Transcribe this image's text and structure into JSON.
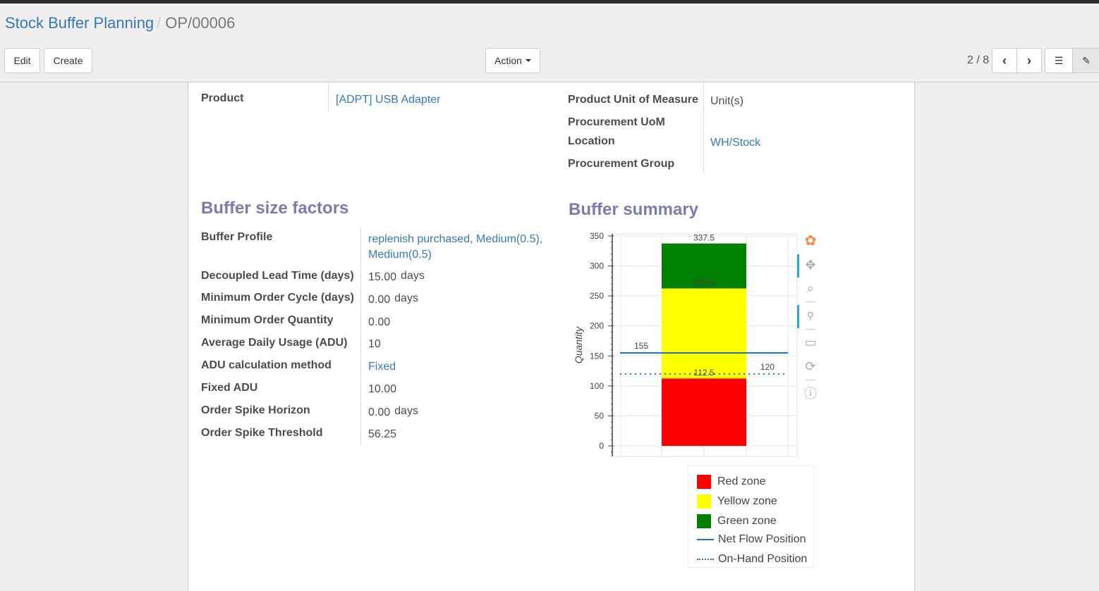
{
  "breadcrumb": {
    "parent": "Stock Buffer Planning",
    "current": "OP/00006"
  },
  "toolbar": {
    "edit": "Edit",
    "create": "Create",
    "action": "Action",
    "pager": "2 / 8"
  },
  "form": {
    "product_label": "Product",
    "product_value": "[ADPT] USB Adapter",
    "uom_label": "Product Unit of Measure",
    "uom_value": "Unit(s)",
    "proc_uom_label": "Procurement UoM",
    "location_label": "Location",
    "location_value": "WH/Stock",
    "proc_group_label": "Procurement Group"
  },
  "factors": {
    "title": "Buffer size factors",
    "rows": [
      {
        "label": "Buffer Profile",
        "value": "replenish purchased, Medium(0.5),",
        "value2": "Medium(0.5)",
        "link": true
      },
      {
        "label": "Decoupled Lead Time (days)",
        "value": "15.00",
        "unit": "days"
      },
      {
        "label": "Minimum Order Cycle (days)",
        "value": "0.00",
        "unit": "days"
      },
      {
        "label": "Minimum Order Quantity",
        "value": "0.00"
      },
      {
        "label": "Average Daily Usage (ADU)",
        "value": "10"
      },
      {
        "label": "ADU calculation method",
        "value": "Fixed",
        "link": true
      },
      {
        "label": "Fixed ADU",
        "value": "10.00"
      },
      {
        "label": "Order Spike Horizon",
        "value": "0.00",
        "unit": "days"
      },
      {
        "label": "Order Spike Threshold",
        "value": "56.25"
      }
    ]
  },
  "summary": {
    "title": "Buffer summary"
  },
  "chart_data": {
    "type": "bar",
    "stacked": true,
    "ylabel": "Quantity",
    "ylim": [
      0,
      350
    ],
    "yticks": [
      "0",
      "50",
      "100",
      "150",
      "200",
      "250",
      "300",
      "350"
    ],
    "grid": true,
    "legend_placement": "bottom-right",
    "series": [
      {
        "name": "Red zone",
        "from": 0,
        "to": 112.5,
        "label": "112.5",
        "color": "#ff0000"
      },
      {
        "name": "Yellow zone",
        "from": 112.5,
        "to": 262.5,
        "label": "262.5",
        "color": "#ffff00"
      },
      {
        "name": "Green zone",
        "from": 262.5,
        "to": 337.5,
        "label": "337.5",
        "color": "#008000"
      }
    ],
    "lines": [
      {
        "name": "Net Flow Position",
        "value": 155,
        "label": "155",
        "style": "solid",
        "color": "#1f77b4"
      },
      {
        "name": "On-Hand Position",
        "value": 120,
        "label": "120",
        "style": "dotted",
        "color": "#1f77b4"
      }
    ]
  },
  "chart_tools": [
    "bokeh-logo-icon",
    "pan-icon",
    "box-zoom-icon",
    "wheel-zoom-icon",
    "save-icon",
    "reset-icon",
    "help-icon"
  ]
}
